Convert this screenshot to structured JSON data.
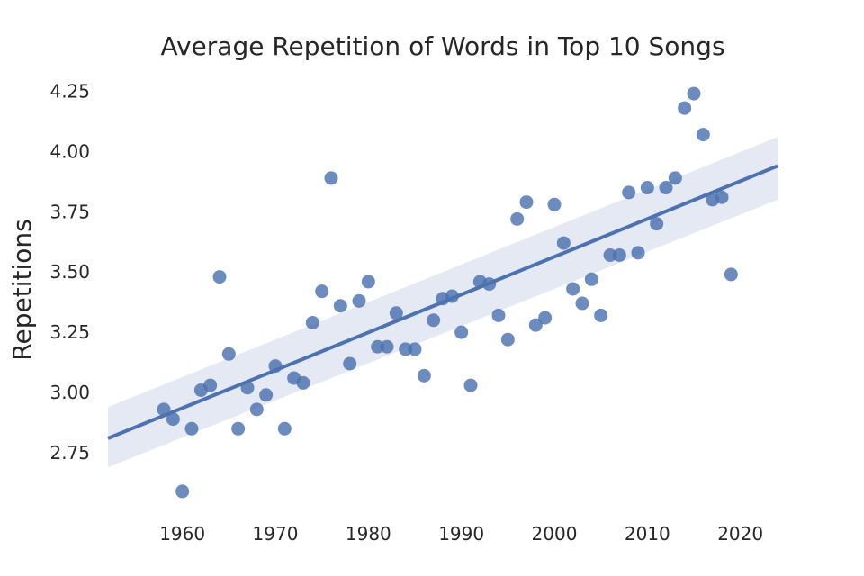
{
  "chart_data": {
    "type": "scatter",
    "title": "Average Repetition of Words in Top 10 Songs",
    "xlabel": "",
    "ylabel": "Repetitions",
    "xlim": [
      1952,
      2024
    ],
    "ylim": [
      2.5,
      4.33
    ],
    "xticks": [
      1960,
      1970,
      1980,
      1990,
      2000,
      2010,
      2020
    ],
    "yticks": [
      2.75,
      3.0,
      3.25,
      3.5,
      3.75,
      4.0,
      4.25
    ],
    "ytick_labels": [
      "2.75",
      "3.00",
      "3.25",
      "3.50",
      "3.75",
      "4.00",
      "4.25"
    ],
    "grid": false,
    "points": [
      [
        1958,
        2.93
      ],
      [
        1959,
        2.89
      ],
      [
        1960,
        2.59
      ],
      [
        1961,
        2.85
      ],
      [
        1962,
        3.01
      ],
      [
        1963,
        3.03
      ],
      [
        1964,
        3.48
      ],
      [
        1965,
        3.16
      ],
      [
        1966,
        2.85
      ],
      [
        1967,
        3.02
      ],
      [
        1968,
        2.93
      ],
      [
        1969,
        2.99
      ],
      [
        1970,
        3.11
      ],
      [
        1971,
        2.85
      ],
      [
        1972,
        3.06
      ],
      [
        1973,
        3.04
      ],
      [
        1974,
        3.29
      ],
      [
        1975,
        3.42
      ],
      [
        1976,
        3.89
      ],
      [
        1977,
        3.36
      ],
      [
        1978,
        3.12
      ],
      [
        1979,
        3.38
      ],
      [
        1980,
        3.46
      ],
      [
        1981,
        3.19
      ],
      [
        1982,
        3.19
      ],
      [
        1983,
        3.33
      ],
      [
        1984,
        3.18
      ],
      [
        1985,
        3.18
      ],
      [
        1986,
        3.07
      ],
      [
        1987,
        3.3
      ],
      [
        1988,
        3.39
      ],
      [
        1989,
        3.4
      ],
      [
        1990,
        3.25
      ],
      [
        1991,
        3.03
      ],
      [
        1992,
        3.46
      ],
      [
        1993,
        3.45
      ],
      [
        1994,
        3.32
      ],
      [
        1995,
        3.22
      ],
      [
        1996,
        3.72
      ],
      [
        1997,
        3.79
      ],
      [
        1998,
        3.28
      ],
      [
        1999,
        3.31
      ],
      [
        2000,
        3.78
      ],
      [
        2001,
        3.62
      ],
      [
        2002,
        3.43
      ],
      [
        2003,
        3.37
      ],
      [
        2004,
        3.47
      ],
      [
        2005,
        3.32
      ],
      [
        2006,
        3.57
      ],
      [
        2007,
        3.57
      ],
      [
        2008,
        3.83
      ],
      [
        2009,
        3.58
      ],
      [
        2010,
        3.85
      ],
      [
        2011,
        3.7
      ],
      [
        2012,
        3.85
      ],
      [
        2013,
        3.89
      ],
      [
        2014,
        4.18
      ],
      [
        2015,
        4.24
      ],
      [
        2016,
        4.07
      ],
      [
        2017,
        3.8
      ],
      [
        2018,
        3.81
      ],
      [
        2019,
        3.49
      ]
    ],
    "regression": {
      "x": [
        1952,
        2024
      ],
      "y": [
        2.81,
        3.94
      ],
      "ci_lower": [
        2.69,
        3.8
      ],
      "ci_upper": [
        2.94,
        4.06
      ]
    },
    "colors": {
      "points": "#4c72b0",
      "line": "#4c72b0",
      "band": "#dfe5f2"
    }
  }
}
